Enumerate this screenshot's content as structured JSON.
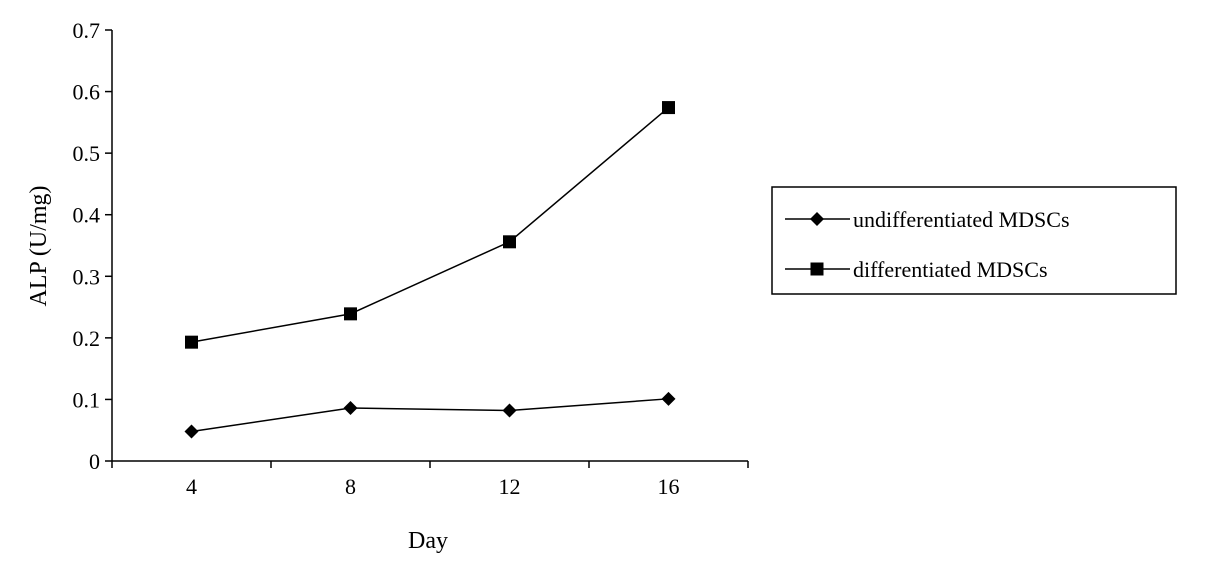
{
  "chart_data": {
    "type": "line",
    "title": "",
    "xlabel": "Day",
    "ylabel": "ALP (U/mg)",
    "categories": [
      "4",
      "8",
      "12",
      "16"
    ],
    "ylim": [
      0,
      0.7
    ],
    "yticks": [
      "0",
      "0.1",
      "0.2",
      "0.3",
      "0.4",
      "0.5",
      "0.6",
      "0.7"
    ],
    "grid": false,
    "legend_position": "right",
    "series": [
      {
        "name": "undifferentiated MDSCs",
        "marker": "diamond",
        "color": "#000000",
        "values": [
          0.048,
          0.086,
          0.082,
          0.101
        ]
      },
      {
        "name": "differentiated MDSCs",
        "marker": "square",
        "color": "#000000",
        "values": [
          0.193,
          0.239,
          0.356,
          0.574
        ]
      }
    ]
  }
}
